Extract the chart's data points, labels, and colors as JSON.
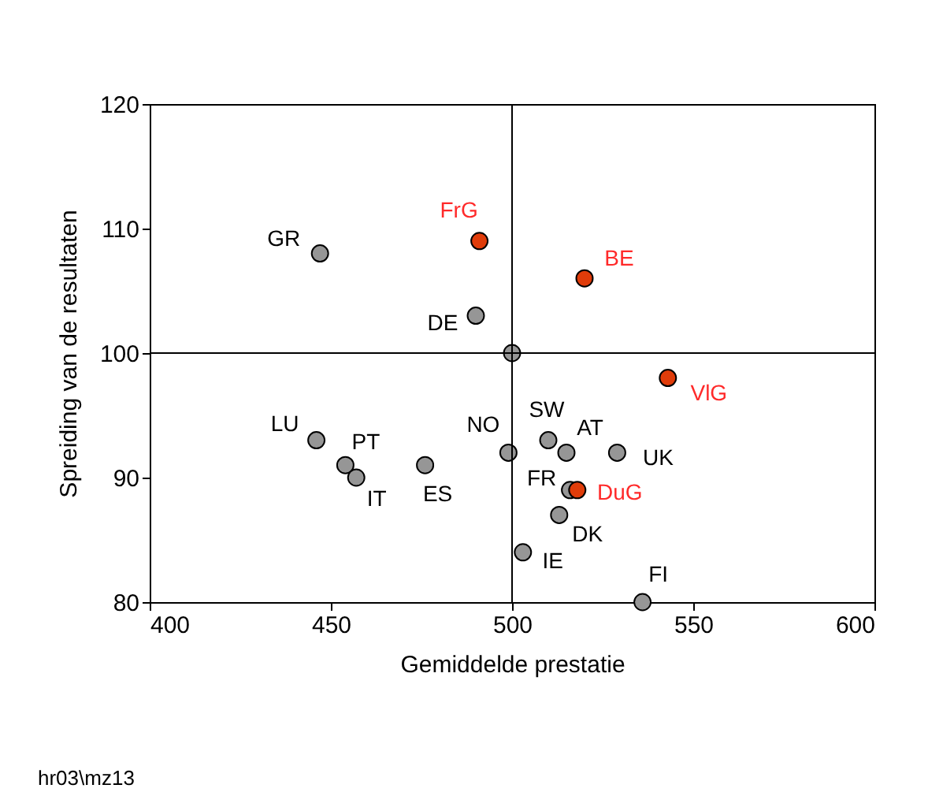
{
  "chart_data": {
    "type": "scatter",
    "xlabel": "Gemiddelde prestatie",
    "ylabel": "Spreiding van de resultaten",
    "xlim": [
      400,
      600
    ],
    "xticks": [
      400,
      450,
      500,
      550,
      600
    ],
    "ylim": [
      80,
      120
    ],
    "yticks": [
      80,
      90,
      100,
      110,
      120
    ],
    "grid": false,
    "marker": "circle",
    "series": [
      {
        "color": "#969696",
        "x": [
          447,
          490,
          500,
          446,
          454,
          457,
          476,
          499,
          510,
          515,
          529,
          516,
          513,
          503,
          536
        ],
        "values": [
          108,
          103,
          100,
          93,
          91,
          90,
          91,
          92,
          93,
          92,
          92,
          89,
          87,
          84,
          80
        ],
        "value_labels": [
          "GR",
          "DE",
          null,
          "LU",
          "PT",
          "IT",
          "ES",
          "NO",
          "SW",
          "AT",
          "UK",
          "FR",
          "DK",
          "IE",
          "FI"
        ]
      },
      {
        "color": "#e03c0a",
        "x": [
          491,
          520,
          543,
          518
        ],
        "values": [
          109,
          106,
          98,
          89
        ],
        "value_labels": [
          "FrG",
          "BE",
          "VlG",
          "DuG"
        ]
      }
    ],
    "ref_lines": [
      {
        "axis": "x",
        "value": 500
      },
      {
        "axis": "y",
        "value": 100
      }
    ],
    "annotations": [
      "hr03\\mz13"
    ]
  }
}
